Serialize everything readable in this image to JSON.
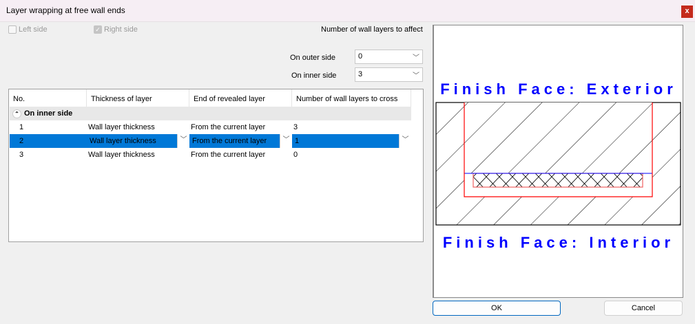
{
  "window": {
    "title": "Layer wrapping at free wall ends",
    "close_label": "x"
  },
  "options": {
    "left_side": {
      "label": "Left side",
      "checked": false
    },
    "right_side": {
      "label": "Right side",
      "checked": true
    }
  },
  "affect": {
    "heading": "Number of wall layers to affect",
    "outer_label": "On outer side",
    "outer_value": "0",
    "inner_label": "On inner side",
    "inner_value": "3"
  },
  "table": {
    "columns": [
      "No.",
      "Thickness of layer",
      "End of revealed layer",
      "Number of wall layers to cross"
    ],
    "group": "On inner side",
    "rows": [
      {
        "no": "1",
        "thickness": "Wall layer thickness",
        "end": "From the current layer",
        "cross": "3"
      },
      {
        "no": "2",
        "thickness": "Wall layer thickness",
        "end": "From the current layer",
        "cross": "1"
      },
      {
        "no": "3",
        "thickness": "Wall layer thickness",
        "end": "From the current layer",
        "cross": "0"
      }
    ],
    "selected_row": 2
  },
  "preview": {
    "top_label": "Finish Face: Exterior",
    "bottom_label": "Finish Face: Interior",
    "label_color": "#0000ff",
    "outline_color": "#ff0000"
  },
  "buttons": {
    "ok": "OK",
    "cancel": "Cancel"
  },
  "colors": {
    "selection": "#0078d7",
    "close": "#c42b1c"
  }
}
